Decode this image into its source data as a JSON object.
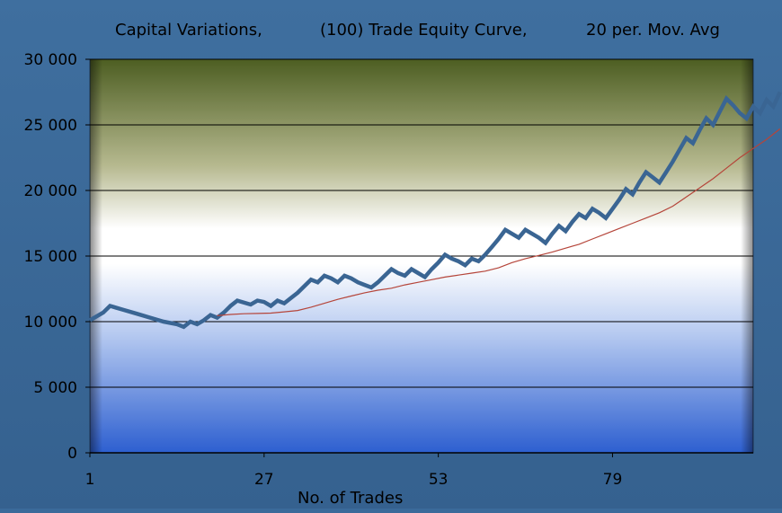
{
  "chart_data": {
    "type": "line",
    "title_parts": [
      "Capital Variations,",
      "(100) Trade Equity Curve,",
      "20 per. Mov. Avg"
    ],
    "xlabel": "No. of Trades",
    "ylabel": "",
    "x_tick_labels": [
      "1",
      "27",
      "53",
      "79"
    ],
    "x_ticks": [
      1,
      27,
      53,
      79
    ],
    "xlim": [
      1,
      100
    ],
    "y_tick_labels": [
      "0",
      "5 000",
      "10 000",
      "15 000",
      "20 000",
      "25 000",
      "30 000"
    ],
    "y_ticks": [
      0,
      5000,
      10000,
      15000,
      20000,
      25000,
      30000
    ],
    "ylim": [
      0,
      30000
    ],
    "grid": "horizontal",
    "legend": "none",
    "series": [
      {
        "role": "equity",
        "color": "#3a6593",
        "points": [
          [
            1,
            10100
          ],
          [
            3,
            10700
          ],
          [
            4,
            11200
          ],
          [
            6,
            10900
          ],
          [
            8,
            10600
          ],
          [
            10,
            10300
          ],
          [
            12,
            10000
          ],
          [
            14,
            9800
          ],
          [
            15,
            9600
          ],
          [
            16,
            10000
          ],
          [
            17,
            9800
          ],
          [
            18,
            10100
          ],
          [
            19,
            10500
          ],
          [
            20,
            10300
          ],
          [
            21,
            10700
          ],
          [
            22,
            11200
          ],
          [
            23,
            11600
          ],
          [
            25,
            11300
          ],
          [
            26,
            11600
          ],
          [
            27,
            11500
          ],
          [
            28,
            11200
          ],
          [
            29,
            11600
          ],
          [
            30,
            11400
          ],
          [
            31,
            11800
          ],
          [
            32,
            12200
          ],
          [
            33,
            12700
          ],
          [
            34,
            13200
          ],
          [
            35,
            13000
          ],
          [
            36,
            13500
          ],
          [
            37,
            13300
          ],
          [
            38,
            13000
          ],
          [
            39,
            13500
          ],
          [
            40,
            13300
          ],
          [
            41,
            13000
          ],
          [
            42,
            12800
          ],
          [
            43,
            12600
          ],
          [
            44,
            13000
          ],
          [
            45,
            13500
          ],
          [
            46,
            14000
          ],
          [
            47,
            13700
          ],
          [
            48,
            13500
          ],
          [
            49,
            14000
          ],
          [
            50,
            13700
          ],
          [
            51,
            13400
          ],
          [
            52,
            14000
          ],
          [
            53,
            14500
          ],
          [
            54,
            15100
          ],
          [
            55,
            14800
          ],
          [
            56,
            14600
          ],
          [
            57,
            14300
          ],
          [
            58,
            14800
          ],
          [
            59,
            14600
          ],
          [
            60,
            15100
          ],
          [
            61,
            15700
          ],
          [
            62,
            16300
          ],
          [
            63,
            17000
          ],
          [
            64,
            16700
          ],
          [
            65,
            16400
          ],
          [
            66,
            17000
          ],
          [
            67,
            16700
          ],
          [
            68,
            16400
          ],
          [
            69,
            16000
          ],
          [
            70,
            16700
          ],
          [
            71,
            17300
          ],
          [
            72,
            16900
          ],
          [
            73,
            17600
          ],
          [
            74,
            18200
          ],
          [
            75,
            17900
          ],
          [
            76,
            18600
          ],
          [
            77,
            18300
          ],
          [
            78,
            17900
          ],
          [
            79,
            18600
          ],
          [
            80,
            19300
          ],
          [
            81,
            20100
          ],
          [
            82,
            19700
          ],
          [
            83,
            20600
          ],
          [
            84,
            21400
          ],
          [
            85,
            21000
          ],
          [
            86,
            20600
          ],
          [
            87,
            21400
          ],
          [
            88,
            22200
          ],
          [
            89,
            23100
          ],
          [
            90,
            24000
          ],
          [
            91,
            23600
          ],
          [
            92,
            24600
          ],
          [
            93,
            25500
          ],
          [
            94,
            25000
          ],
          [
            95,
            26000
          ],
          [
            96,
            27000
          ],
          [
            97,
            26500
          ],
          [
            98,
            25900
          ],
          [
            99,
            25500
          ],
          [
            100,
            26400
          ],
          [
            101,
            25900
          ],
          [
            102,
            26900
          ],
          [
            103,
            26400
          ],
          [
            104,
            27500
          ]
        ]
      },
      {
        "role": "moving_average",
        "color": "#b5453a",
        "points": [
          [
            20,
            10450
          ],
          [
            22,
            10550
          ],
          [
            24,
            10600
          ],
          [
            26,
            10620
          ],
          [
            28,
            10650
          ],
          [
            30,
            10750
          ],
          [
            32,
            10850
          ],
          [
            34,
            11100
          ],
          [
            36,
            11400
          ],
          [
            38,
            11700
          ],
          [
            40,
            11950
          ],
          [
            42,
            12200
          ],
          [
            44,
            12400
          ],
          [
            46,
            12550
          ],
          [
            48,
            12800
          ],
          [
            50,
            13000
          ],
          [
            52,
            13200
          ],
          [
            54,
            13400
          ],
          [
            56,
            13550
          ],
          [
            58,
            13700
          ],
          [
            60,
            13850
          ],
          [
            62,
            14100
          ],
          [
            64,
            14500
          ],
          [
            66,
            14800
          ],
          [
            68,
            15050
          ],
          [
            70,
            15300
          ],
          [
            72,
            15600
          ],
          [
            74,
            15900
          ],
          [
            76,
            16300
          ],
          [
            78,
            16700
          ],
          [
            80,
            17100
          ],
          [
            82,
            17500
          ],
          [
            84,
            17900
          ],
          [
            86,
            18300
          ],
          [
            88,
            18800
          ],
          [
            90,
            19500
          ],
          [
            92,
            20200
          ],
          [
            94,
            20900
          ],
          [
            96,
            21700
          ],
          [
            98,
            22500
          ],
          [
            100,
            23200
          ],
          [
            102,
            23900
          ],
          [
            104,
            24700
          ]
        ]
      }
    ]
  }
}
